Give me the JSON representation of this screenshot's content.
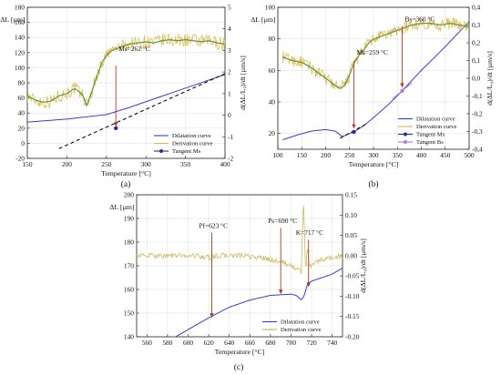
{
  "figure": {
    "panels": [
      "a",
      "b",
      "c"
    ]
  },
  "chart_data": [
    {
      "id": "a",
      "type": "line",
      "panel_label": "(a)",
      "xlabel": "Temperature [°C]",
      "ylabel": "ΔL [µm]",
      "y2label": "d(ΔL/L₀)/dt [µm/s]",
      "xlim": [
        150,
        400
      ],
      "ylim": [
        -20,
        180
      ],
      "y2lim": [
        -2,
        5
      ],
      "xticks": [
        150,
        200,
        250,
        300,
        350,
        400
      ],
      "yticks": [
        -20,
        0,
        20,
        40,
        60,
        80,
        100,
        120,
        140,
        160,
        180
      ],
      "y2ticks": [
        -2,
        -1,
        0,
        1,
        2,
        3,
        4,
        5
      ],
      "grid": true,
      "legend_position": "bottom-right",
      "colors": {
        "dilatation": "#3b3bd6",
        "derivation": "#e0b64a",
        "smooth": "#5a9a3a",
        "tangent": "#111111",
        "marker": "#2b2b9a",
        "arrow": "#c0392b"
      },
      "series": [
        {
          "name": "Dilatation curve",
          "axis": "left",
          "x": [
            150,
            175,
            200,
            225,
            250,
            275,
            300,
            325,
            350,
            375,
            400
          ],
          "y": [
            28,
            30,
            32,
            35,
            38,
            46,
            55,
            64,
            73,
            82,
            91
          ]
        },
        {
          "name": "Derivation curve",
          "axis": "right",
          "noisy": true,
          "x": [
            150,
            160,
            170,
            180,
            190,
            200,
            210,
            220,
            225,
            230,
            235,
            240,
            245,
            250,
            255,
            260,
            265,
            270,
            280,
            290,
            300,
            310,
            320,
            330,
            340,
            350,
            360,
            370,
            380,
            390,
            400
          ],
          "y": [
            0.9,
            0.7,
            0.6,
            0.65,
            0.9,
            1.0,
            1.25,
            0.95,
            0.45,
            0.9,
            1.5,
            2.0,
            2.5,
            2.75,
            2.95,
            3.05,
            3.1,
            3.2,
            3.3,
            3.35,
            3.4,
            3.35,
            3.45,
            3.5,
            3.45,
            3.5,
            3.45,
            3.4,
            3.45,
            3.35,
            3.3
          ]
        },
        {
          "name": "Tangent Ms",
          "axis": "left",
          "style": "dashed",
          "x": [
            190,
            400
          ],
          "y": [
            -7,
            92
          ],
          "marker": {
            "x": 262,
            "y": 20
          }
        }
      ],
      "annotations": [
        {
          "text": "Ms=262 °C",
          "x": 262,
          "y": 122,
          "arrow_from_y": 103,
          "arrow_to_y": 22
        }
      ]
    },
    {
      "id": "b",
      "type": "line",
      "panel_label": "(b)",
      "xlabel": "Temperature [°C]",
      "ylabel": "ΔL [µm]",
      "y2label": "d(ΔL/L₀)/dt [µm/s]",
      "xlim": [
        100,
        500
      ],
      "ylim": [
        10,
        100
      ],
      "y2lim": [
        -0.4,
        0.4
      ],
      "xticks": [
        100,
        150,
        200,
        250,
        300,
        350,
        400,
        450,
        500
      ],
      "yticks": [
        20,
        40,
        60,
        80,
        100
      ],
      "y2ticks": [
        -0.4,
        -0.3,
        -0.2,
        -0.1,
        0.0,
        0.1,
        0.2,
        0.3,
        0.4
      ],
      "y2ticklabels": [
        "-0,4",
        "-0,3",
        "-0,2",
        "-0,1",
        "0,0",
        "0,1",
        "0,2",
        "0,3",
        "0,4"
      ],
      "grid": true,
      "legend_position": "bottom-right",
      "colors": {
        "dilatation": "#3b3bd6",
        "derivation": "#e0b64a",
        "smooth": "#5a9a3a",
        "tangent": "#111111",
        "marker_ms": "#2b2b9a",
        "marker_bs": "#b57bd6",
        "arrow": "#c0392b"
      },
      "series": [
        {
          "name": "Dilatation curve",
          "axis": "left",
          "x": [
            110,
            140,
            170,
            200,
            220,
            235,
            250,
            259,
            280,
            300,
            330,
            360,
            400,
            450,
            500
          ],
          "y": [
            16,
            19,
            21.5,
            22.5,
            21.5,
            18,
            20,
            21,
            25,
            30,
            38,
            47,
            60,
            75,
            91
          ]
        },
        {
          "name": "Derivation curve",
          "axis": "right",
          "noisy": true,
          "x": [
            110,
            130,
            150,
            170,
            190,
            210,
            230,
            240,
            250,
            260,
            270,
            280,
            290,
            300,
            310,
            320,
            330,
            340,
            350,
            360,
            370,
            380,
            390,
            400,
            420,
            440,
            460,
            480,
            500
          ],
          "y": [
            0.12,
            0.1,
            0.09,
            0.06,
            0.02,
            -0.02,
            -0.06,
            -0.04,
            0.02,
            0.09,
            0.13,
            0.16,
            0.2,
            0.22,
            0.23,
            0.24,
            0.25,
            0.26,
            0.27,
            0.28,
            0.29,
            0.3,
            0.305,
            0.31,
            0.31,
            0.3,
            0.31,
            0.3,
            0.29
          ]
        },
        {
          "name": "Tangent Ms",
          "axis": "left",
          "style": "dashed",
          "x": [
            230,
            285
          ],
          "y": [
            17,
            26
          ],
          "marker": {
            "x": 259,
            "y": 21
          }
        },
        {
          "name": "Tangent Bs",
          "axis": "left",
          "style": "solid",
          "x": [
            340,
            380
          ],
          "y": [
            42,
            52
          ],
          "marker": {
            "x": 360,
            "y": 47
          }
        }
      ],
      "annotations": [
        {
          "text": "Ms=259 °C",
          "x": 259,
          "y": 70,
          "arrow_from_y": 66,
          "arrow_to_y": 23
        },
        {
          "text": "Bs=360 °C",
          "x": 360,
          "y": 91,
          "arrow_from_y": 88,
          "arrow_to_y": 49
        }
      ]
    },
    {
      "id": "c",
      "type": "line",
      "panel_label": "(c)",
      "xlabel": "Temperature [°C]",
      "ylabel": "ΔL [µm]",
      "y2label": "d(ΔL/L₀)/dt [µm/s]",
      "xlim": [
        550,
        750
      ],
      "ylim": [
        140,
        200
      ],
      "y2lim": [
        -0.2,
        0.15
      ],
      "xticks": [
        560,
        580,
        600,
        620,
        640,
        660,
        680,
        700,
        720,
        740
      ],
      "yticks": [
        140,
        150,
        160,
        170,
        180,
        190,
        200
      ],
      "y2ticks": [
        -0.2,
        -0.15,
        -0.1,
        -0.05,
        0.0,
        0.05,
        0.1,
        0.15
      ],
      "y2ticklabels": [
        "-0.20",
        "-0.15",
        "-0.10",
        "-0.05",
        "0.00",
        "0.05",
        "0.10",
        "0.15"
      ],
      "grid": true,
      "legend_position": "bottom-right",
      "colors": {
        "dilatation": "#3b3bd6",
        "derivation": "#c9b04a",
        "arrow": "#a04020"
      },
      "series": [
        {
          "name": "Dilatation curve",
          "axis": "left",
          "x": [
            588,
            600,
            620,
            640,
            660,
            680,
            700,
            705,
            710,
            713,
            716,
            720,
            730,
            740,
            750
          ],
          "y": [
            140,
            143,
            148,
            152.5,
            155.5,
            157.5,
            158,
            157.5,
            155.5,
            157.5,
            162.5,
            163.5,
            165,
            166.5,
            169
          ]
        },
        {
          "name": "Derivation curve",
          "axis": "right",
          "noisy": true,
          "x": [
            550,
            570,
            590,
            610,
            620,
            630,
            650,
            670,
            680,
            690,
            695,
            700,
            705,
            710,
            712,
            714,
            716,
            718,
            720,
            730,
            740,
            750
          ],
          "y": [
            0.0,
            0.0,
            0.0,
            0.0,
            -0.005,
            0.0,
            0.0,
            -0.005,
            -0.01,
            -0.015,
            -0.02,
            -0.025,
            -0.03,
            -0.04,
            0.15,
            -0.04,
            0.02,
            -0.03,
            -0.02,
            -0.01,
            -0.005,
            0.0
          ]
        }
      ],
      "annotations": [
        {
          "text": "Pf=623 °C",
          "x": 623,
          "y": 186,
          "arrow_from_y": 184,
          "arrow_to_y": 148
        },
        {
          "text": "Ps=690 °C",
          "x": 690,
          "y": 188,
          "arrow_from_y": 186,
          "arrow_to_y": 158
        },
        {
          "text": "K=717 °C",
          "x": 717,
          "y": 183,
          "arrow_from_y": 181,
          "arrow_to_y": 161
        }
      ]
    }
  ]
}
